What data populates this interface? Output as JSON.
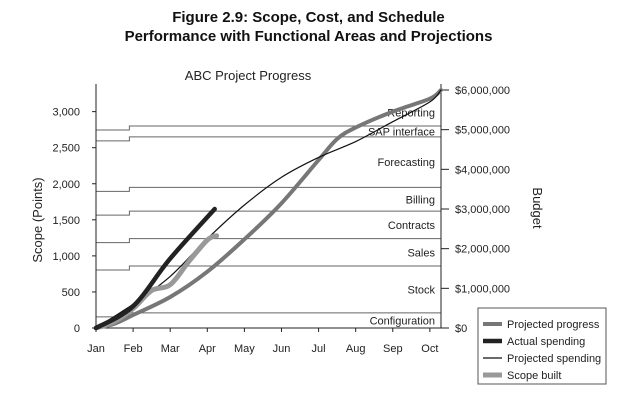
{
  "figure": {
    "title_line1": "Figure 2.9: Scope, Cost, and Schedule",
    "title_line2": "Performance with Functional Areas and Projections"
  },
  "chart_data": {
    "type": "line",
    "title": "ABC Project Progress",
    "x_categories": [
      "Jan",
      "Feb",
      "Mar",
      "Apr",
      "May",
      "Jun",
      "Jul",
      "Aug",
      "Sep",
      "Oct"
    ],
    "y_left": {
      "label": "Scope (Points)",
      "ticks": [
        0,
        500,
        1000,
        1500,
        2000,
        2500,
        3000
      ],
      "tick_labels": [
        "0",
        "500",
        "1,000",
        "1,500",
        "2,000",
        "2,500",
        "3,000"
      ],
      "range": [
        0,
        3300
      ]
    },
    "y_right": {
      "label": "Budget",
      "ticks": [
        0,
        1000000,
        2000000,
        3000000,
        4000000,
        5000000,
        6000000
      ],
      "tick_labels": [
        "$0",
        "$1,000,000",
        "$2,000,000",
        "$3,000,000",
        "$4,000,000",
        "$5,000,000",
        "$6,000,000"
      ],
      "range": [
        0,
        6000000
      ]
    },
    "functional_areas": [
      {
        "name": "Configuration",
        "start": 0,
        "end": 210
      },
      {
        "name": "Stock",
        "start": 210,
        "end": 860
      },
      {
        "name": "Sales",
        "start": 860,
        "end": 1240
      },
      {
        "name": "Contracts",
        "start": 1240,
        "end": 1620
      },
      {
        "name": "Billing",
        "start": 1620,
        "end": 1950
      },
      {
        "name": "Forecasting",
        "start": 1950,
        "end": 2650
      },
      {
        "name": "SAP interface",
        "start": 2650,
        "end": 2800
      },
      {
        "name": "Reporting",
        "start": 2800,
        "end": 3180
      }
    ],
    "series": [
      {
        "name": "Projected progress",
        "axis": "left",
        "color": "#777777",
        "x": [
          0,
          0.5,
          1,
          2,
          3,
          4,
          5,
          6,
          6.5,
          7,
          8,
          9,
          9.3
        ],
        "y": [
          0,
          60,
          180,
          430,
          780,
          1230,
          1730,
          2330,
          2620,
          2780,
          3000,
          3180,
          3300
        ]
      },
      {
        "name": "Actual spending",
        "axis": "right",
        "color": "#222222",
        "x": [
          0,
          1,
          2,
          3.2
        ],
        "y": [
          0,
          550000,
          1750000,
          3000000
        ]
      },
      {
        "name": "Projected spending",
        "axis": "right",
        "color": "#111111",
        "x": [
          0,
          1,
          2,
          3,
          4,
          5,
          6,
          7,
          8,
          9,
          9.3
        ],
        "y": [
          0,
          600000,
          1300000,
          2250000,
          3100000,
          3800000,
          4300000,
          4700000,
          5200000,
          5700000,
          6000000
        ]
      },
      {
        "name": "Scope built",
        "axis": "left",
        "color": "#999999",
        "x": [
          0,
          0.5,
          1,
          1.5,
          2,
          2.5,
          3,
          3.25
        ],
        "y": [
          0,
          90,
          270,
          520,
          600,
          920,
          1220,
          1280
        ]
      }
    ],
    "legend": {
      "placement": "bottom-right"
    },
    "grid": false
  }
}
